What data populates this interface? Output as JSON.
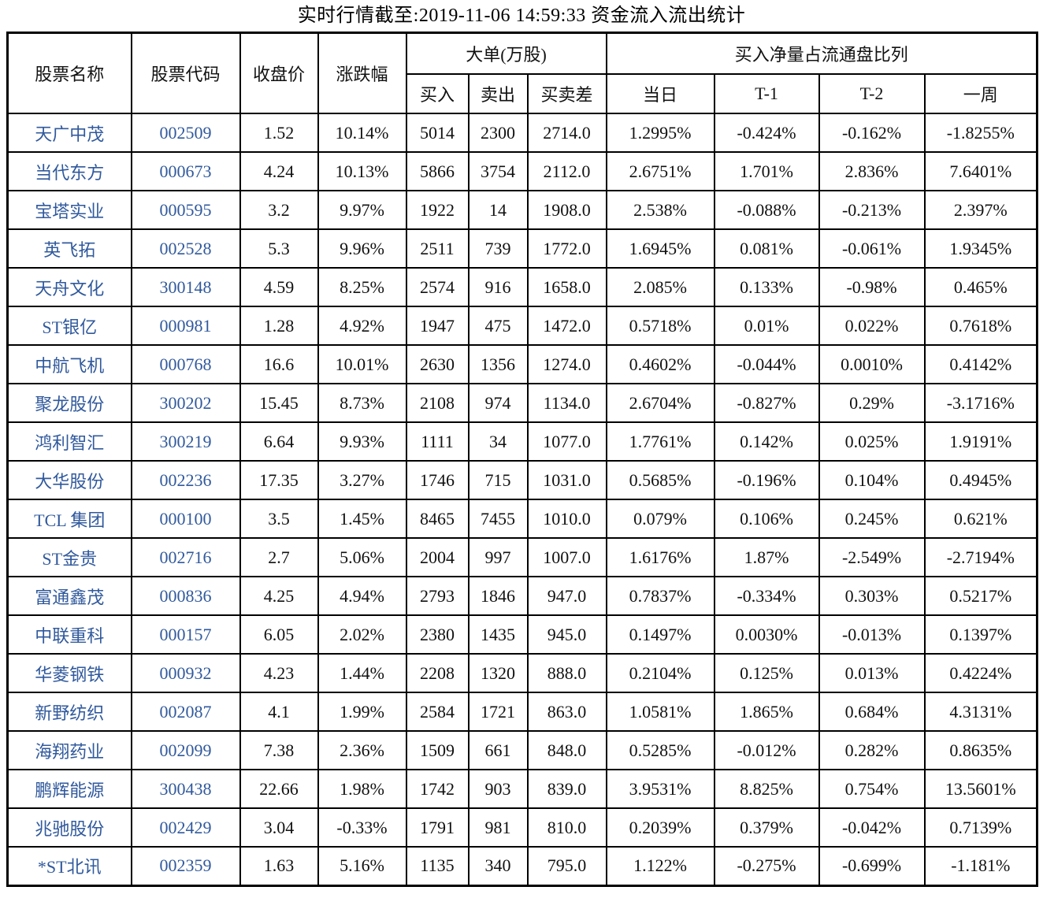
{
  "title": "实时行情截至:2019-11-06 14:59:33 资金流入流出统计",
  "colors": {
    "link_blue": "#30599c",
    "text_black": "#111111",
    "border_black": "#000000",
    "background": "#ffffff"
  },
  "table": {
    "headers": {
      "stock_name": "股票名称",
      "stock_code": "股票代码",
      "close_price": "收盘价",
      "change_pct": "涨跌幅",
      "large_order_group": "大单(万股)",
      "net_buy_group": "买入净量占流通盘比列",
      "buy": "买入",
      "sell": "卖出",
      "buy_sell_diff": "买卖差",
      "today": "当日",
      "t1": "T-1",
      "t2": "T-2",
      "week": "一周"
    },
    "rows": [
      {
        "name": "天广中茂",
        "code": "002509",
        "close": "1.52",
        "change": "10.14%",
        "buy": "5014",
        "sell": "2300",
        "diff": "2714.0",
        "d0": "1.2995%",
        "t1": "-0.424%",
        "t2": "-0.162%",
        "week": "-1.8255%"
      },
      {
        "name": "当代东方",
        "code": "000673",
        "close": "4.24",
        "change": "10.13%",
        "buy": "5866",
        "sell": "3754",
        "diff": "2112.0",
        "d0": "2.6751%",
        "t1": "1.701%",
        "t2": "2.836%",
        "week": "7.6401%"
      },
      {
        "name": "宝塔实业",
        "code": "000595",
        "close": "3.2",
        "change": "9.97%",
        "buy": "1922",
        "sell": "14",
        "diff": "1908.0",
        "d0": "2.538%",
        "t1": "-0.088%",
        "t2": "-0.213%",
        "week": "2.397%"
      },
      {
        "name": "英飞拓",
        "code": "002528",
        "close": "5.3",
        "change": "9.96%",
        "buy": "2511",
        "sell": "739",
        "diff": "1772.0",
        "d0": "1.6945%",
        "t1": "0.081%",
        "t2": "-0.061%",
        "week": "1.9345%"
      },
      {
        "name": "天舟文化",
        "code": "300148",
        "close": "4.59",
        "change": "8.25%",
        "buy": "2574",
        "sell": "916",
        "diff": "1658.0",
        "d0": "2.085%",
        "t1": "0.133%",
        "t2": "-0.98%",
        "week": "0.465%"
      },
      {
        "name": "ST银亿",
        "code": "000981",
        "close": "1.28",
        "change": "4.92%",
        "buy": "1947",
        "sell": "475",
        "diff": "1472.0",
        "d0": "0.5718%",
        "t1": "0.01%",
        "t2": "0.022%",
        "week": "0.7618%"
      },
      {
        "name": "中航飞机",
        "code": "000768",
        "close": "16.6",
        "change": "10.01%",
        "buy": "2630",
        "sell": "1356",
        "diff": "1274.0",
        "d0": "0.4602%",
        "t1": "-0.044%",
        "t2": "0.0010%",
        "week": "0.4142%"
      },
      {
        "name": "聚龙股份",
        "code": "300202",
        "close": "15.45",
        "change": "8.73%",
        "buy": "2108",
        "sell": "974",
        "diff": "1134.0",
        "d0": "2.6704%",
        "t1": "-0.827%",
        "t2": "0.29%",
        "week": "-3.1716%"
      },
      {
        "name": "鸿利智汇",
        "code": "300219",
        "close": "6.64",
        "change": "9.93%",
        "buy": "1111",
        "sell": "34",
        "diff": "1077.0",
        "d0": "1.7761%",
        "t1": "0.142%",
        "t2": "0.025%",
        "week": "1.9191%"
      },
      {
        "name": "大华股份",
        "code": "002236",
        "close": "17.35",
        "change": "3.27%",
        "buy": "1746",
        "sell": "715",
        "diff": "1031.0",
        "d0": "0.5685%",
        "t1": "-0.196%",
        "t2": "0.104%",
        "week": "0.4945%"
      },
      {
        "name": "TCL 集团",
        "code": "000100",
        "close": "3.5",
        "change": "1.45%",
        "buy": "8465",
        "sell": "7455",
        "diff": "1010.0",
        "d0": "0.079%",
        "t1": "0.106%",
        "t2": "0.245%",
        "week": "0.621%"
      },
      {
        "name": "ST金贵",
        "code": "002716",
        "close": "2.7",
        "change": "5.06%",
        "buy": "2004",
        "sell": "997",
        "diff": "1007.0",
        "d0": "1.6176%",
        "t1": "1.87%",
        "t2": "-2.549%",
        "week": "-2.7194%"
      },
      {
        "name": "富通鑫茂",
        "code": "000836",
        "close": "4.25",
        "change": "4.94%",
        "buy": "2793",
        "sell": "1846",
        "diff": "947.0",
        "d0": "0.7837%",
        "t1": "-0.334%",
        "t2": "0.303%",
        "week": "0.5217%"
      },
      {
        "name": "中联重科",
        "code": "000157",
        "close": "6.05",
        "change": "2.02%",
        "buy": "2380",
        "sell": "1435",
        "diff": "945.0",
        "d0": "0.1497%",
        "t1": "0.0030%",
        "t2": "-0.013%",
        "week": "0.1397%"
      },
      {
        "name": "华菱钢铁",
        "code": "000932",
        "close": "4.23",
        "change": "1.44%",
        "buy": "2208",
        "sell": "1320",
        "diff": "888.0",
        "d0": "0.2104%",
        "t1": "0.125%",
        "t2": "0.013%",
        "week": "0.4224%"
      },
      {
        "name": "新野纺织",
        "code": "002087",
        "close": "4.1",
        "change": "1.99%",
        "buy": "2584",
        "sell": "1721",
        "diff": "863.0",
        "d0": "1.0581%",
        "t1": "1.865%",
        "t2": "0.684%",
        "week": "4.3131%"
      },
      {
        "name": "海翔药业",
        "code": "002099",
        "close": "7.38",
        "change": "2.36%",
        "buy": "1509",
        "sell": "661",
        "diff": "848.0",
        "d0": "0.5285%",
        "t1": "-0.012%",
        "t2": "0.282%",
        "week": "0.8635%"
      },
      {
        "name": "鹏辉能源",
        "code": "300438",
        "close": "22.66",
        "change": "1.98%",
        "buy": "1742",
        "sell": "903",
        "diff": "839.0",
        "d0": "3.9531%",
        "t1": "8.825%",
        "t2": "0.754%",
        "week": "13.5601%"
      },
      {
        "name": "兆驰股份",
        "code": "002429",
        "close": "3.04",
        "change": "-0.33%",
        "buy": "1791",
        "sell": "981",
        "diff": "810.0",
        "d0": "0.2039%",
        "t1": "0.379%",
        "t2": "-0.042%",
        "week": "0.7139%"
      },
      {
        "name": "*ST北讯",
        "code": "002359",
        "close": "1.63",
        "change": "5.16%",
        "buy": "1135",
        "sell": "340",
        "diff": "795.0",
        "d0": "1.122%",
        "t1": "-0.275%",
        "t2": "-0.699%",
        "week": "-1.181%"
      }
    ]
  }
}
